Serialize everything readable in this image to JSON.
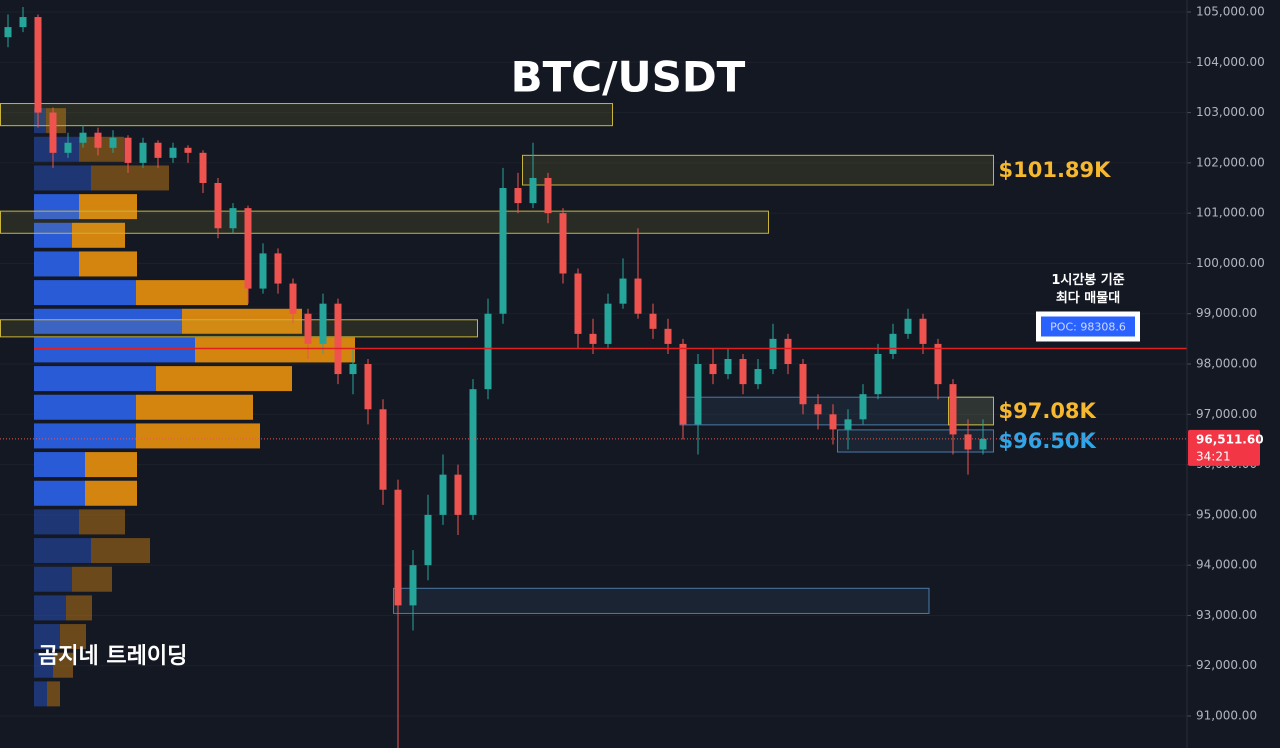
{
  "chart_data": {
    "type": "candlestick",
    "title": "BTC/USDT",
    "watermark": "곰지네 트레이딩",
    "up_color": "#26a69a",
    "down_color": "#ef5350",
    "grid": true,
    "ylim": [
      90364,
      105239
    ],
    "yticks": [
      {
        "value": 91000,
        "label": "91,000.00"
      },
      {
        "value": 92000,
        "label": "92,000.00"
      },
      {
        "value": 93000,
        "label": "93,000.00"
      },
      {
        "value": 94000,
        "label": "94,000.00"
      },
      {
        "value": 95000,
        "label": "95,000.00"
      },
      {
        "value": 96000,
        "label": "96,000.00"
      },
      {
        "value": 97000,
        "label": "97,000.00"
      },
      {
        "value": 98000,
        "label": "98,000.00"
      },
      {
        "value": 99000,
        "label": "99,000.00"
      },
      {
        "value": 100000,
        "label": "100,000.00"
      },
      {
        "value": 101000,
        "label": "101,000.00"
      },
      {
        "value": 102000,
        "label": "102,000.00"
      },
      {
        "value": 103000,
        "label": "103,000.00"
      },
      {
        "value": 104000,
        "label": "104,000.00"
      },
      {
        "value": 105000,
        "label": "105,000.00"
      }
    ],
    "open": [
      104500,
      104700,
      104900,
      103000,
      102200,
      102400,
      102600,
      102300,
      102500,
      102000,
      102400,
      102100,
      102300,
      102200,
      101600,
      100700,
      101100,
      99500,
      100200,
      99600,
      99000,
      98400,
      99200,
      97800,
      98000,
      97100,
      95500,
      93200,
      94000,
      95000,
      95800,
      95000,
      97500,
      99000,
      101500,
      101200,
      101700,
      101000,
      99800,
      98600,
      98400,
      99200,
      99700,
      99000,
      98700,
      98400,
      96800,
      98000,
      97800,
      98100,
      97600,
      97900,
      98500,
      98000,
      97200,
      97000,
      96700,
      96900,
      97400,
      98200,
      98600,
      98900,
      98400,
      97600,
      96600,
      96300
    ],
    "high": [
      104950,
      105100,
      104950,
      103100,
      102600,
      102750,
      102700,
      102650,
      102550,
      102500,
      102450,
      102400,
      102350,
      102250,
      101700,
      101200,
      101150,
      100400,
      100300,
      99700,
      99100,
      99400,
      99300,
      98300,
      98100,
      97300,
      95700,
      94300,
      95400,
      96200,
      96000,
      97700,
      99300,
      101900,
      101800,
      102400,
      101800,
      101100,
      99900,
      98900,
      99400,
      100100,
      100700,
      99200,
      98900,
      98500,
      98200,
      98300,
      98300,
      98200,
      98100,
      98800,
      98600,
      98100,
      97400,
      97200,
      97100,
      97600,
      98400,
      98800,
      99100,
      99000,
      98500,
      97700,
      96900,
      96900
    ],
    "low": [
      104300,
      104600,
      102700,
      101900,
      102100,
      102300,
      102150,
      102200,
      101800,
      101900,
      101900,
      102000,
      102000,
      101400,
      100500,
      100600,
      99200,
      99400,
      99400,
      98800,
      98100,
      98200,
      97600,
      97400,
      96800,
      95200,
      90300,
      92700,
      93700,
      94800,
      94600,
      94900,
      97300,
      98800,
      101000,
      101100,
      100800,
      99600,
      98300,
      98200,
      98300,
      99100,
      98900,
      98500,
      98200,
      96500,
      96200,
      97600,
      97700,
      97400,
      97500,
      97800,
      97800,
      97000,
      96700,
      96400,
      96300,
      96800,
      97300,
      98100,
      98500,
      98200,
      97300,
      96200,
      95800,
      96200
    ],
    "close": [
      104700,
      104900,
      103000,
      102200,
      102400,
      102600,
      102300,
      102500,
      102000,
      102400,
      102100,
      102300,
      102200,
      101600,
      100700,
      101100,
      99500,
      100200,
      99600,
      99000,
      98400,
      99200,
      97800,
      98000,
      97100,
      95500,
      93200,
      94000,
      95000,
      95800,
      95000,
      97500,
      99000,
      101500,
      101200,
      101700,
      101000,
      99800,
      98600,
      98400,
      99200,
      99700,
      99000,
      98700,
      98400,
      96800,
      98000,
      97800,
      98100,
      97600,
      97900,
      98500,
      98000,
      97200,
      97000,
      96700,
      96900,
      97400,
      98200,
      98600,
      98900,
      98400,
      97600,
      96600,
      96300,
      96511.6
    ],
    "volume_profile": {
      "buy_color": "#2a5bd7",
      "sell_color": "#d4850f",
      "value_area": [
        95400,
        101200
      ],
      "prices": [
        102840,
        102270,
        101700,
        101130,
        100560,
        99990,
        99420,
        98850,
        98280,
        97710,
        97140,
        96570,
        96000,
        95430,
        94860,
        94290,
        93720,
        93150,
        92580,
        92010,
        91440
      ],
      "buy": [
        12,
        45,
        57,
        45,
        38,
        45,
        102,
        148,
        161,
        122,
        102,
        102,
        51,
        51,
        45,
        57,
        38,
        32,
        26,
        19,
        13
      ],
      "sell": [
        20,
        45,
        78,
        58,
        53,
        58,
        112,
        120,
        160,
        136,
        117,
        124,
        52,
        52,
        46,
        59,
        40,
        26,
        26,
        20,
        13
      ]
    },
    "zones": [
      {
        "top": 103180,
        "bottom": 102740,
        "start": -0.5,
        "end": 40.3,
        "color": "#c8b43a"
      },
      {
        "top": 102150,
        "bottom": 101560,
        "start": 34.3,
        "end": 65.7,
        "color": "#c8b43a",
        "label": "$101.89K",
        "label_color": "#f5b82e"
      },
      {
        "top": 101040,
        "bottom": 100600,
        "start": -0.5,
        "end": 50.7,
        "color": "#c8b43a"
      },
      {
        "top": 98880,
        "bottom": 98540,
        "start": -0.5,
        "end": 31.3,
        "color": "#c8b43a"
      },
      {
        "top": 93540,
        "bottom": 93040,
        "start": 25.7,
        "end": 61.4,
        "color": "#4a7aa8"
      },
      {
        "top": 97340,
        "bottom": 96790,
        "start": 44.8,
        "end": 65.7,
        "color": "#4a7aa8"
      },
      {
        "top": 97340,
        "bottom": 96790,
        "start": 62.7,
        "end": 65.7,
        "color": "#c8b43a",
        "label": "$97.08K",
        "label_color": "#f5b82e"
      },
      {
        "top": 96690,
        "bottom": 96250,
        "start": 55.3,
        "end": 65.7,
        "color": "#4a7aa8",
        "label": "$96.50K",
        "label_color": "#2ea6e8"
      }
    ],
    "poc": {
      "value": 98308.6,
      "label": "POC: 98308.6",
      "note": [
        "1시간봉 기준",
        "최다 매물대"
      ]
    },
    "last_price": {
      "value": 96511.6,
      "label": "96,511.60",
      "countdown": "34:21"
    }
  }
}
